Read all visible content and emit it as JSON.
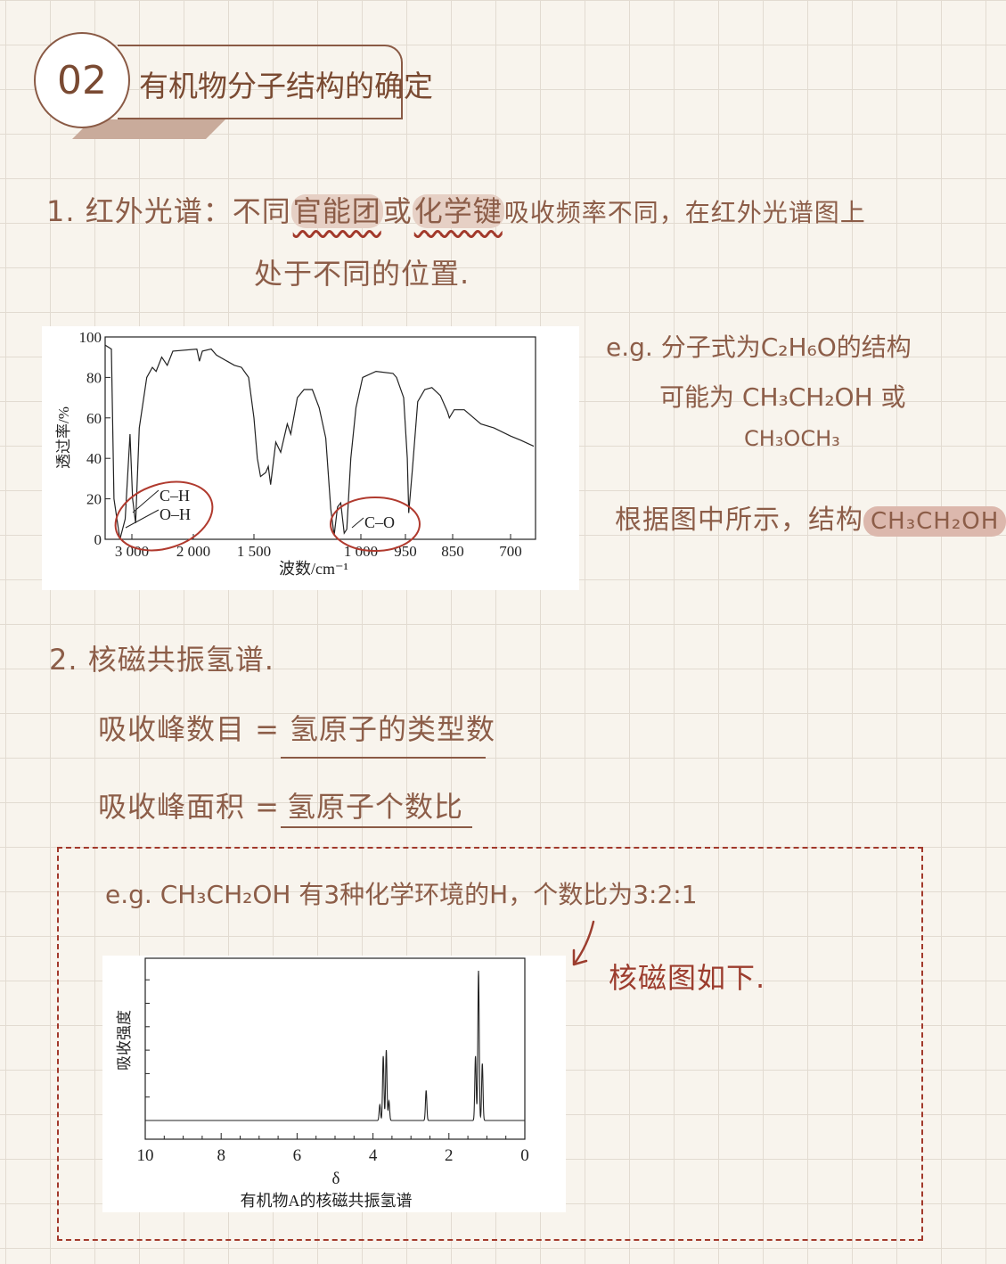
{
  "header": {
    "number": "02",
    "title": "有机物分子结构的确定"
  },
  "section1": {
    "prefix": "1. 红外光谱：不同",
    "highlight1": "官能团",
    "mid": "或",
    "highlight2": "化学键",
    "suffix": "吸收频率不同，在红外光谱图上",
    "line2": "处于不同的位置."
  },
  "ir_note": {
    "line1": "e.g. 分子式为C₂H₆O的结构",
    "line2": "可能为 CH₃CH₂OH 或",
    "line3": "CH₃OCH₃",
    "conclusion_prefix": "根据图中所示，结构",
    "conclusion_highlight": "CH₃CH₂OH"
  },
  "section2": {
    "heading": "2. 核磁共振氢谱.",
    "rule1_left": "吸收峰数目 =",
    "rule1_right": "氢原子的类型数",
    "rule2_left": "吸收峰面积 =",
    "rule2_right": "氢原子个数比",
    "example": "e.g.  CH₃CH₂OH 有3种化学环境的H，个数比为3:2:1",
    "arrow_note": "核磁图如下."
  },
  "colors": {
    "ink": "#8c5d48",
    "accent_red": "#a2392b",
    "highlight": "#e6d0c5",
    "circle_annotation": "#b03a2e"
  },
  "chart_data": [
    {
      "type": "line",
      "title": "",
      "xlabel": "波数/cm⁻¹",
      "ylabel": "透过率/%",
      "xlim": [
        3485,
        640
      ],
      "ylim": [
        0,
        100
      ],
      "x_ticks": [
        3000,
        2000,
        1500,
        1000,
        950,
        850,
        700
      ],
      "x_tick_labels": [
        "3 000",
        "2 000",
        "1 500",
        "1 000",
        "950",
        "850",
        "700"
      ],
      "y_ticks": [
        0,
        20,
        40,
        60,
        80,
        100
      ],
      "grid": false,
      "x_scale": "non-uniform (piecewise by tick)",
      "annotations": [
        "C–H",
        "O–H",
        "C–O"
      ],
      "series": [
        {
          "x": [
            3485,
            3333,
            3291,
            3194,
            3109,
            3030,
            2988,
            2939,
            2879,
            2758,
            2667,
            2606,
            2515,
            2424,
            2333,
            1971,
            1950,
            1926,
            1853,
            1809,
            1721,
            1662,
            1603,
            1544,
            1500,
            1484,
            1469,
            1445,
            1433,
            1422,
            1398,
            1375,
            1344,
            1328,
            1297,
            1266,
            1227,
            1195,
            1164,
            1141,
            1125,
            1109,
            1094,
            1078,
            1066,
            1047,
            1023,
            998,
            983,
            964,
            960,
            952,
            946,
            943,
            935,
            924,
            909,
            894,
            876,
            861,
            857,
            846,
            820,
            777,
            743,
            700,
            674,
            640
          ],
          "y": [
            96,
            94,
            20,
            0,
            10,
            52,
            20,
            8,
            55,
            80,
            85,
            83,
            90,
            86,
            93,
            94,
            88,
            93,
            94,
            91,
            88,
            86,
            85,
            80,
            60,
            40,
            31,
            33,
            36,
            27,
            48,
            43,
            57,
            52,
            70,
            74,
            74,
            65,
            50,
            15,
            2,
            16,
            18,
            3,
            5,
            40,
            65,
            80,
            83,
            82,
            80,
            70,
            40,
            13,
            35,
            68,
            74,
            75,
            71,
            63,
            60,
            64,
            64,
            57,
            55,
            51,
            49,
            46
          ]
        }
      ]
    },
    {
      "type": "line",
      "title": "有机物A的核磁共振氢谱",
      "xlabel": "δ",
      "ylabel": "吸收强度",
      "xlim": [
        10,
        0
      ],
      "x_ticks": [
        10,
        8,
        6,
        4,
        2,
        0
      ],
      "x_tick_labels": [
        "10",
        "8",
        "6",
        "4",
        "2",
        "0"
      ],
      "grid": false,
      "peaks": {
        "delta": [
          3.82,
          3.73,
          3.65,
          3.58,
          2.6,
          1.3,
          1.22,
          1.12
        ],
        "relative_intensity": [
          0.105,
          0.43,
          0.47,
          0.13,
          0.2,
          0.43,
          1.0,
          0.38
        ]
      }
    }
  ]
}
